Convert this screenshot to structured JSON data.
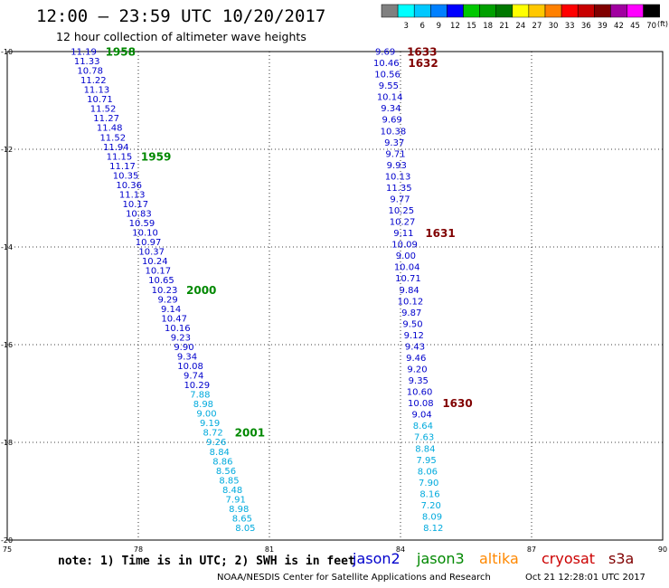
{
  "header": {
    "title": "12:00 – 23:59 UTC 10/20/2017",
    "subtitle": "12 hour collection of altimeter wave heights"
  },
  "color_scale": {
    "unit": "(ft)",
    "bins": [
      {
        "label": "",
        "color": "#808080"
      },
      {
        "label": "3",
        "color": "#00ffff"
      },
      {
        "label": "6",
        "color": "#00c8ff"
      },
      {
        "label": "9",
        "color": "#0080ff"
      },
      {
        "label": "12",
        "color": "#0000ff"
      },
      {
        "label": "15",
        "color": "#00c800"
      },
      {
        "label": "18",
        "color": "#00a000"
      },
      {
        "label": "21",
        "color": "#007800"
      },
      {
        "label": "24",
        "color": "#ffff00"
      },
      {
        "label": "27",
        "color": "#ffc800"
      },
      {
        "label": "30",
        "color": "#ff8000"
      },
      {
        "label": "33",
        "color": "#ff0000"
      },
      {
        "label": "36",
        "color": "#c80000"
      },
      {
        "label": "39",
        "color": "#800000"
      },
      {
        "label": "42",
        "color": "#a000a0"
      },
      {
        "label": "45",
        "color": "#ff00ff"
      },
      {
        "label": "70",
        "color": "#000000"
      }
    ]
  },
  "footer": {
    "note": "note: 1) Time is in UTC; 2) SWH is in feet",
    "credit": "NOAA/NESDIS Center for Satellite Applications and Research",
    "timestamp": "Oct 21 12:28:01 UTC 2017"
  },
  "legend": [
    {
      "name": "jason2",
      "color": "#0000cc"
    },
    {
      "name": "jason3",
      "color": "#008800"
    },
    {
      "name": "altika",
      "color": "#ff8800"
    },
    {
      "name": "cryosat",
      "color": "#cc0000"
    },
    {
      "name": "s3a",
      "color": "#800000"
    }
  ],
  "chart_data": {
    "type": "scatter",
    "x_ticks": [
      "75",
      "78",
      "81",
      "84",
      "87",
      "90"
    ],
    "y_ticks": [
      "-10",
      "-12",
      "-14",
      "-16",
      "-18",
      "-20"
    ],
    "xlim": [
      75,
      90
    ],
    "ylim": [
      -20,
      -10
    ],
    "grid": true,
    "colors": {
      "dark_blue": "#0000cc",
      "light_blue": "#00aadd",
      "green": "#008800",
      "dark_red": "#800000"
    },
    "tracks": [
      {
        "satellite": "jason3",
        "x_start": 76.75,
        "y_start": -10.0,
        "x_end": 80.45,
        "y_end": -19.75,
        "values": [
          "11.19",
          "11.33",
          "10.78",
          "11.22",
          "11.13",
          "10.71",
          "11.52",
          "11.27",
          "11.48",
          "11.52",
          "11.94",
          "11.15",
          "11.17",
          "10.35",
          "10.36",
          "11.13",
          "10.17",
          "10.83",
          "10.59",
          "10.10",
          "10.97",
          "10.37",
          "10.24",
          "10.17",
          "10.65",
          "10.23",
          "9.29",
          "9.14",
          "10.47",
          "10.16",
          "9.23",
          "9.90",
          "9.34",
          "10.08",
          "9.74",
          "10.29",
          "7.88",
          "8.98",
          "9.00",
          "9.19",
          "8.72",
          "9.26",
          "8.84",
          "8.86",
          "8.56",
          "8.85",
          "8.48",
          "7.91",
          "8.98",
          "8.65",
          "8.05"
        ],
        "light_from_index": 36,
        "time_labels": [
          {
            "text": "1958",
            "index": 0
          },
          {
            "text": "1959",
            "index": 11
          },
          {
            "text": "2000",
            "index": 25
          },
          {
            "text": "2001",
            "index": 40
          }
        ]
      },
      {
        "satellite": "s3a",
        "x_start": 83.65,
        "y_start": -10.0,
        "x_end": 84.75,
        "y_end": -19.75,
        "values": [
          "9.69",
          "10.46",
          "10.56",
          "9.55",
          "10.14",
          "9.34",
          "9.69",
          "10.38",
          "9.37",
          "9.71",
          "9.93",
          "10.13",
          "11.35",
          "9.77",
          "10.25",
          "10.27",
          "9.11",
          "10.09",
          "9.00",
          "10.04",
          "10.71",
          "9.84",
          "10.12",
          "9.87",
          "9.50",
          "9.12",
          "9.43",
          "9.46",
          "9.20",
          "9.35",
          "10.60",
          "10.08",
          "9.04",
          "8.64",
          "7.63",
          "8.84",
          "7.95",
          "8.06",
          "7.90",
          "8.16",
          "7.20",
          "8.09",
          "8.12"
        ],
        "light_from_index": 33,
        "time_labels": [
          {
            "text": "1633",
            "index": 0
          },
          {
            "text": "1632",
            "index": 1
          },
          {
            "text": "1631",
            "index": 16
          },
          {
            "text": "1630",
            "index": 31
          }
        ]
      }
    ]
  }
}
